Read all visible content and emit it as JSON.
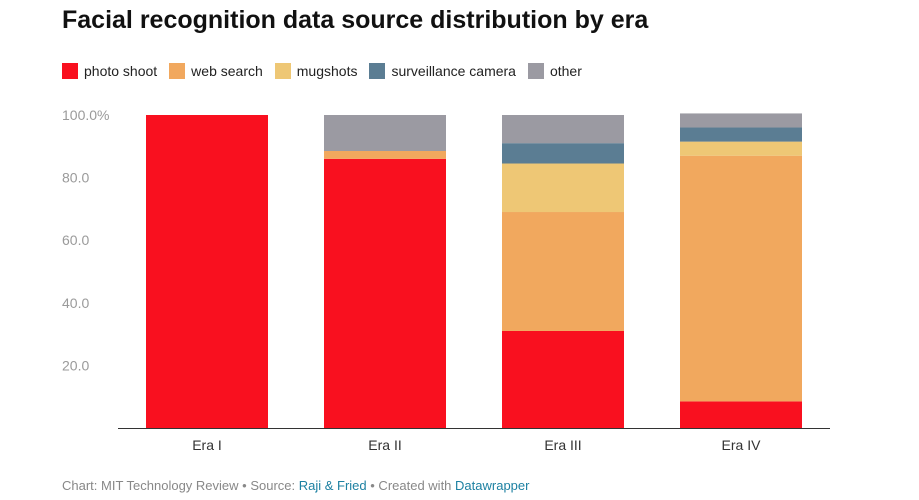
{
  "chart_data": {
    "type": "bar",
    "stacked": true,
    "title": "Facial recognition data source distribution by era",
    "categories": [
      "Era I",
      "Era II",
      "Era III",
      "Era IV"
    ],
    "series": [
      {
        "name": "photo shoot",
        "color": "#f9101f",
        "values": [
          100.0,
          86.0,
          31.0,
          8.5
        ]
      },
      {
        "name": "web search",
        "color": "#f1a85e",
        "values": [
          0.0,
          2.5,
          38.0,
          78.5
        ]
      },
      {
        "name": "mugshots",
        "color": "#eec775",
        "values": [
          0.0,
          0.0,
          15.5,
          4.5
        ]
      },
      {
        "name": "surveillance camera",
        "color": "#5b7d93",
        "values": [
          0.0,
          0.0,
          6.5,
          4.5
        ]
      },
      {
        "name": "other",
        "color": "#9b9aa2",
        "values": [
          0.0,
          11.5,
          9.0,
          4.5
        ]
      }
    ],
    "ylim": [
      0,
      100
    ],
    "yticks": [
      "100.0%",
      "80.0",
      "60.0",
      "40.0",
      "20.0"
    ],
    "ytick_values": [
      100,
      80,
      60,
      40,
      20
    ],
    "xlabel": "",
    "ylabel": "",
    "legend": "top-left"
  },
  "footer": {
    "chart_prefix": "Chart: MIT Technology Review • Source: ",
    "source_link": "Raji & Fried",
    "created_prefix": " • Created with ",
    "tool_link": "Datawrapper"
  }
}
